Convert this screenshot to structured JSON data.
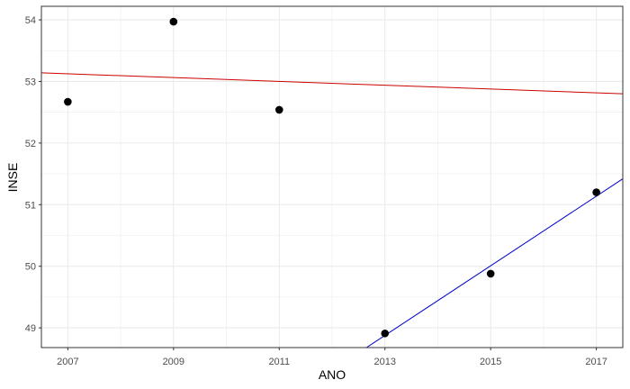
{
  "chart_data": {
    "type": "scatter",
    "title": "",
    "xlabel": "ANO",
    "ylabel": "INSE",
    "xlim": [
      2006.5,
      2017.5
    ],
    "ylim": [
      48.68,
      54.22
    ],
    "x_ticks": [
      2007,
      2009,
      2011,
      2013,
      2015,
      2017
    ],
    "y_ticks": [
      49,
      50,
      51,
      52,
      53,
      54
    ],
    "grid": true,
    "legend": "none",
    "points": [
      {
        "x": 2007,
        "y": 52.67
      },
      {
        "x": 2009,
        "y": 53.97
      },
      {
        "x": 2011,
        "y": 52.54
      },
      {
        "x": 2013,
        "y": 48.91
      },
      {
        "x": 2015,
        "y": 49.88
      },
      {
        "x": 2017,
        "y": 51.2
      }
    ],
    "lines": [
      {
        "color": "#cc0000",
        "from": {
          "x": 2006.5,
          "y": 53.14
        },
        "to": {
          "x": 2017.5,
          "y": 52.8
        }
      },
      {
        "color": "#0000cc",
        "from": {
          "x": 2012.65,
          "y": 48.68
        },
        "to": {
          "x": 2017.5,
          "y": 51.42
        }
      }
    ],
    "colors": {
      "points": "#000000",
      "grid": "#ebebeb",
      "panel_border": "#333333"
    }
  }
}
